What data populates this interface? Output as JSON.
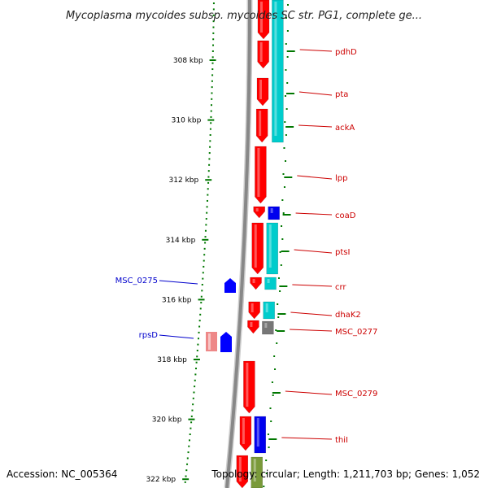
{
  "title": "Mycoplasma mycoides subsp. mycoides SC str. PG1, complete ge...",
  "footer": {
    "accession": "Accession: NC_005364",
    "topology": "Topology: circular; Length: 1,211,703 bp; Genes: 1,052"
  },
  "colors": {
    "forward_gene": "#ff0000",
    "reverse_gene": "#0000ff",
    "forward_cds": "#ff0000",
    "reverse_cds": "#0000ee",
    "track_cyan": "#00cccc",
    "track_gray": "#777777",
    "track_olive": "#7a9a3a",
    "pseudo_pink": "#ee8888",
    "tick_green": "#007700",
    "backbone": "#888888",
    "label_red": "#cc0000",
    "label_blue": "#0000cc"
  },
  "ticks": [
    {
      "label": "308 kbp",
      "kbp": 308
    },
    {
      "label": "310 kbp",
      "kbp": 310
    },
    {
      "label": "312 kbp",
      "kbp": 312
    },
    {
      "label": "314 kbp",
      "kbp": 314
    },
    {
      "label": "316 kbp",
      "kbp": 316
    },
    {
      "label": "318 kbp",
      "kbp": 318
    },
    {
      "label": "320 kbp",
      "kbp": 320
    },
    {
      "label": "322 kbp",
      "kbp": 322
    }
  ],
  "genes_right": [
    {
      "label": "pdhD"
    },
    {
      "label": "pta"
    },
    {
      "label": "ackA"
    },
    {
      "label": "lpp"
    },
    {
      "label": "coaD"
    },
    {
      "label": "ptsI"
    },
    {
      "label": "crr"
    },
    {
      "label": "dhaK2"
    },
    {
      "label": "MSC_0277"
    },
    {
      "label": "MSC_0279"
    },
    {
      "label": "thiI"
    }
  ],
  "genes_left": [
    {
      "label": "MSC_0275"
    },
    {
      "label": "rpsD"
    }
  ]
}
